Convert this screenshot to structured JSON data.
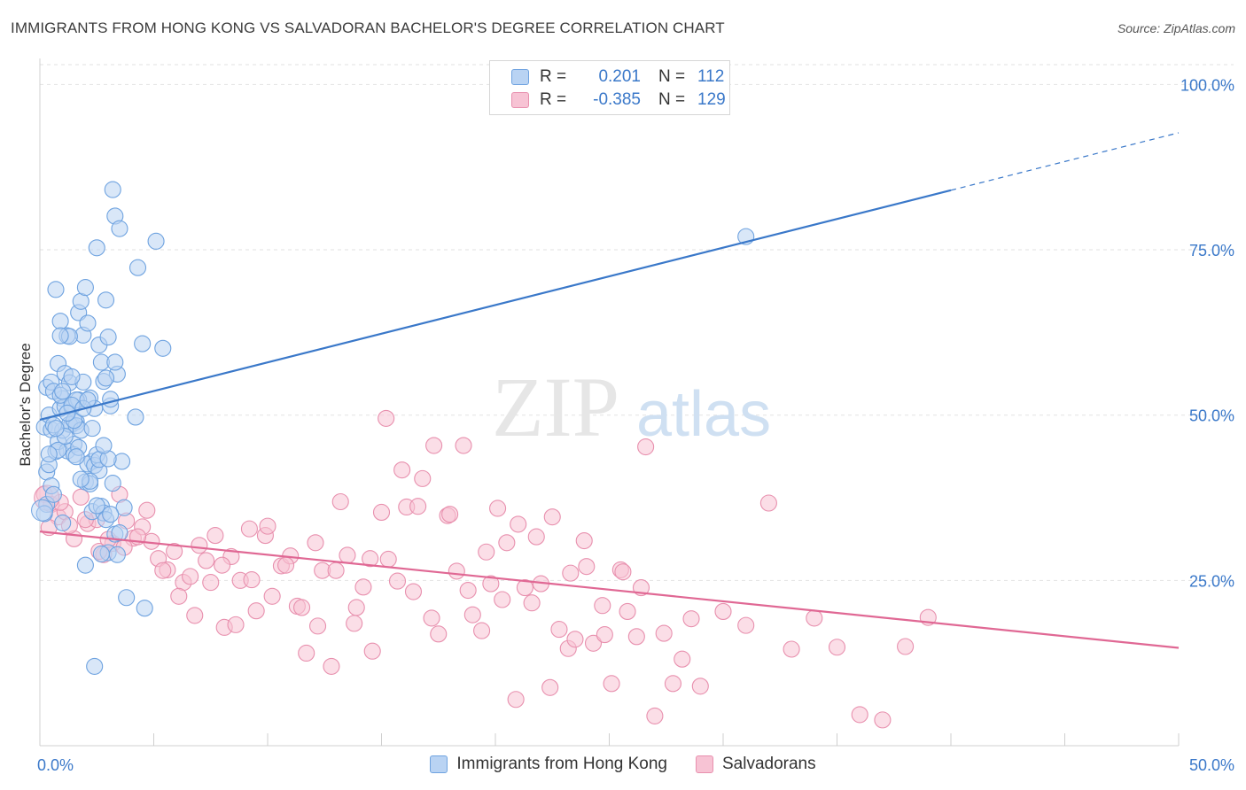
{
  "title": "IMMIGRANTS FROM HONG KONG VS SALVADORAN BACHELOR'S DEGREE CORRELATION CHART",
  "source": "Source: ZipAtlas.com",
  "watermark": {
    "zip": "ZIP",
    "atlas": "atlas"
  },
  "legend": {
    "rows": [
      {
        "r_label": "R =",
        "r_value": "0.201",
        "n_label": "N =",
        "n_value": "112",
        "color": "#6fa3e0",
        "fill": "#b9d3f3"
      },
      {
        "r_label": "R =",
        "r_value": "-0.385",
        "n_label": "N =",
        "n_value": "129",
        "color": "#e890ae",
        "fill": "#f7c3d4"
      }
    ]
  },
  "chart_data": {
    "type": "scatter",
    "title": "IMMIGRANTS FROM HONG KONG VS SALVADORAN BACHELOR'S DEGREE CORRELATION CHART",
    "xlabel": "",
    "ylabel": "Bachelor's Degree",
    "xlim": [
      0,
      50
    ],
    "ylim": [
      0,
      103
    ],
    "x_tick_labels": [
      "0.0%",
      "50.0%"
    ],
    "y_tick_labels": [
      "25.0%",
      "50.0%",
      "75.0%",
      "100.0%"
    ],
    "y_ticks": [
      25,
      50,
      75,
      100
    ],
    "grid": true,
    "legend_position": "top-center",
    "colors": {
      "hongkong": "#3a78c9",
      "salvadoran": "#e06894",
      "axis_text": "#3a78c9"
    },
    "series": [
      {
        "name": "Immigrants from Hong Kong",
        "color": "#6fa3e0",
        "trend": {
          "x0": 0,
          "y0": 49.3,
          "x1": 40,
          "y1": 84.0,
          "dash_to_x": 50,
          "dash_to_y": 92.7
        },
        "points": [
          [
            0.3,
            54.2
          ],
          [
            0.5,
            55.0
          ],
          [
            0.7,
            69.0
          ],
          [
            0.8,
            57.8
          ],
          [
            0.9,
            64.2
          ],
          [
            1.0,
            52.5
          ],
          [
            1.1,
            56.3
          ],
          [
            1.2,
            62.0
          ],
          [
            1.3,
            54.9
          ],
          [
            1.4,
            48.6
          ],
          [
            1.5,
            45.6
          ],
          [
            1.6,
            49.0
          ],
          [
            1.7,
            65.5
          ],
          [
            1.8,
            67.2
          ],
          [
            1.9,
            62.1
          ],
          [
            2.0,
            69.3
          ],
          [
            2.1,
            63.9
          ],
          [
            2.2,
            52.6
          ],
          [
            2.3,
            43.0
          ],
          [
            2.4,
            51.0
          ],
          [
            2.5,
            75.3
          ],
          [
            2.6,
            60.6
          ],
          [
            2.7,
            58.0
          ],
          [
            2.8,
            55.1
          ],
          [
            2.9,
            67.4
          ],
          [
            3.0,
            61.8
          ],
          [
            3.1,
            51.4
          ],
          [
            3.2,
            84.1
          ],
          [
            3.3,
            80.1
          ],
          [
            3.4,
            56.2
          ],
          [
            3.5,
            78.2
          ],
          [
            3.6,
            43.0
          ],
          [
            3.7,
            36.0
          ],
          [
            3.8,
            22.4
          ],
          [
            4.2,
            49.7
          ],
          [
            4.3,
            72.3
          ],
          [
            4.5,
            60.8
          ],
          [
            4.6,
            20.8
          ],
          [
            5.1,
            76.3
          ],
          [
            5.4,
            60.1
          ],
          [
            0.2,
            48.2
          ],
          [
            0.3,
            41.4
          ],
          [
            0.4,
            42.5
          ],
          [
            0.4,
            50.0
          ],
          [
            0.5,
            47.8
          ],
          [
            0.6,
            53.6
          ],
          [
            0.7,
            44.5
          ],
          [
            0.8,
            46.0
          ],
          [
            0.9,
            51.0
          ],
          [
            1.0,
            47.7
          ],
          [
            1.1,
            51.3
          ],
          [
            1.2,
            44.6
          ],
          [
            1.3,
            48.6
          ],
          [
            1.4,
            51.2
          ],
          [
            1.5,
            44.0
          ],
          [
            1.6,
            48.4
          ],
          [
            1.7,
            52.3
          ],
          [
            1.8,
            47.7
          ],
          [
            1.9,
            55.0
          ],
          [
            2.0,
            39.9
          ],
          [
            2.1,
            42.6
          ],
          [
            2.2,
            39.6
          ],
          [
            2.3,
            35.4
          ],
          [
            2.4,
            42.4
          ],
          [
            2.5,
            44.0
          ],
          [
            2.6,
            41.6
          ],
          [
            2.7,
            36.2
          ],
          [
            2.8,
            35.2
          ],
          [
            2.9,
            34.2
          ],
          [
            3.0,
            29.2
          ],
          [
            3.1,
            35.0
          ],
          [
            3.2,
            39.7
          ],
          [
            3.3,
            32.0
          ],
          [
            3.4,
            28.9
          ],
          [
            2.0,
            27.3
          ],
          [
            2.4,
            12.0
          ],
          [
            1.0,
            33.7
          ],
          [
            1.6,
            52.3
          ],
          [
            0.9,
            53.0
          ],
          [
            0.6,
            48.5
          ],
          [
            1.4,
            51.5
          ],
          [
            2.7,
            29.0
          ],
          [
            3.5,
            32.2
          ],
          [
            2.2,
            40.0
          ],
          [
            1.8,
            40.3
          ],
          [
            2.9,
            55.6
          ],
          [
            1.3,
            61.9
          ],
          [
            3.1,
            52.4
          ],
          [
            0.3,
            36.5
          ],
          [
            0.5,
            39.3
          ],
          [
            0.8,
            44.7
          ],
          [
            1.1,
            46.8
          ],
          [
            1.5,
            49.2
          ],
          [
            1.9,
            51.0
          ],
          [
            2.3,
            48.0
          ],
          [
            2.6,
            43.3
          ],
          [
            0.7,
            48.0
          ],
          [
            1.2,
            50.3
          ],
          [
            0.4,
            44.1
          ],
          [
            0.6,
            38.0
          ],
          [
            1.0,
            53.6
          ],
          [
            1.7,
            45.1
          ],
          [
            2.1,
            52.3
          ],
          [
            2.5,
            36.3
          ],
          [
            3.0,
            43.4
          ],
          [
            3.3,
            58.0
          ],
          [
            31.0,
            77.0
          ],
          [
            1.4,
            55.8
          ],
          [
            0.9,
            62.0
          ],
          [
            1.6,
            43.7
          ],
          [
            2.8,
            45.4
          ],
          [
            0.2,
            35.1
          ]
        ]
      },
      {
        "name": "Salvadorans",
        "color": "#e890ae",
        "trend": {
          "x0": 0,
          "y0": 32.4,
          "x1": 50,
          "y1": 14.8
        },
        "points": [
          [
            0.2,
            38.0
          ],
          [
            0.5,
            36.5
          ],
          [
            0.8,
            34.6
          ],
          [
            1.1,
            35.4
          ],
          [
            1.5,
            31.3
          ],
          [
            1.8,
            37.6
          ],
          [
            2.1,
            33.6
          ],
          [
            2.5,
            34.2
          ],
          [
            2.8,
            28.9
          ],
          [
            3.2,
            30.6
          ],
          [
            3.5,
            38.0
          ],
          [
            3.8,
            34.0
          ],
          [
            4.1,
            31.4
          ],
          [
            4.5,
            33.1
          ],
          [
            4.9,
            30.9
          ],
          [
            5.2,
            28.3
          ],
          [
            5.6,
            26.6
          ],
          [
            5.9,
            29.4
          ],
          [
            6.3,
            24.7
          ],
          [
            6.6,
            25.6
          ],
          [
            7.0,
            30.3
          ],
          [
            7.3,
            28.0
          ],
          [
            7.7,
            31.8
          ],
          [
            8.1,
            17.9
          ],
          [
            8.4,
            28.6
          ],
          [
            8.8,
            25.0
          ],
          [
            9.2,
            32.8
          ],
          [
            9.5,
            20.4
          ],
          [
            9.9,
            31.8
          ],
          [
            10.2,
            22.6
          ],
          [
            10.6,
            27.2
          ],
          [
            11.0,
            28.7
          ],
          [
            11.3,
            21.1
          ],
          [
            11.7,
            14.0
          ],
          [
            12.1,
            30.7
          ],
          [
            12.4,
            26.5
          ],
          [
            12.8,
            12.0
          ],
          [
            13.2,
            36.9
          ],
          [
            13.5,
            28.8
          ],
          [
            13.9,
            20.9
          ],
          [
            14.2,
            24.0
          ],
          [
            14.6,
            14.3
          ],
          [
            15.0,
            35.3
          ],
          [
            15.3,
            28.2
          ],
          [
            15.7,
            24.9
          ],
          [
            16.1,
            36.1
          ],
          [
            16.4,
            23.3
          ],
          [
            16.8,
            40.4
          ],
          [
            17.2,
            19.3
          ],
          [
            17.5,
            16.9
          ],
          [
            17.9,
            34.8
          ],
          [
            18.3,
            26.4
          ],
          [
            18.6,
            45.4
          ],
          [
            19.0,
            19.8
          ],
          [
            19.4,
            17.4
          ],
          [
            19.8,
            24.5
          ],
          [
            20.1,
            35.9
          ],
          [
            20.5,
            30.7
          ],
          [
            20.9,
            7.0
          ],
          [
            21.3,
            23.9
          ],
          [
            21.6,
            21.6
          ],
          [
            22.0,
            24.5
          ],
          [
            22.4,
            8.8
          ],
          [
            22.8,
            17.6
          ],
          [
            23.2,
            14.7
          ],
          [
            23.5,
            16.1
          ],
          [
            23.9,
            31.0
          ],
          [
            24.3,
            15.5
          ],
          [
            24.7,
            21.2
          ],
          [
            25.1,
            9.4
          ],
          [
            25.5,
            26.6
          ],
          [
            25.8,
            20.3
          ],
          [
            26.2,
            16.5
          ],
          [
            26.6,
            45.2
          ],
          [
            27.0,
            4.5
          ],
          [
            27.4,
            17.0
          ],
          [
            27.8,
            9.4
          ],
          [
            28.2,
            13.1
          ],
          [
            28.6,
            19.2
          ],
          [
            29.0,
            9.0
          ],
          [
            30.0,
            20.3
          ],
          [
            31.0,
            18.2
          ],
          [
            32.0,
            36.7
          ],
          [
            33.0,
            14.6
          ],
          [
            34.0,
            19.3
          ],
          [
            35.0,
            14.9
          ],
          [
            36.0,
            4.7
          ],
          [
            37.0,
            3.9
          ],
          [
            38.0,
            15.0
          ],
          [
            39.0,
            19.4
          ],
          [
            0.4,
            33.0
          ],
          [
            0.9,
            36.8
          ],
          [
            1.3,
            33.3
          ],
          [
            2.0,
            34.2
          ],
          [
            2.6,
            29.4
          ],
          [
            3.0,
            31.2
          ],
          [
            3.7,
            30.0
          ],
          [
            4.3,
            31.6
          ],
          [
            4.7,
            35.6
          ],
          [
            5.4,
            26.5
          ],
          [
            6.1,
            22.6
          ],
          [
            6.8,
            19.7
          ],
          [
            7.5,
            24.7
          ],
          [
            8.0,
            27.3
          ],
          [
            8.6,
            18.3
          ],
          [
            9.3,
            25.1
          ],
          [
            10.0,
            33.2
          ],
          [
            10.8,
            27.3
          ],
          [
            11.5,
            20.9
          ],
          [
            12.2,
            18.1
          ],
          [
            13.0,
            26.5
          ],
          [
            13.8,
            18.5
          ],
          [
            14.5,
            28.3
          ],
          [
            15.2,
            49.5
          ],
          [
            15.9,
            41.7
          ],
          [
            16.6,
            36.2
          ],
          [
            17.3,
            45.4
          ],
          [
            18.0,
            35.0
          ],
          [
            18.8,
            23.5
          ],
          [
            19.6,
            29.3
          ],
          [
            20.3,
            22.1
          ],
          [
            21.0,
            33.5
          ],
          [
            21.8,
            31.6
          ],
          [
            22.5,
            34.6
          ],
          [
            23.3,
            26.1
          ],
          [
            24.0,
            27.1
          ],
          [
            24.8,
            16.8
          ],
          [
            25.6,
            26.3
          ],
          [
            26.4,
            23.9
          ]
        ]
      }
    ]
  },
  "bottom_legend": [
    {
      "label": "Immigrants from Hong Kong",
      "color": "#6fa3e0",
      "fill": "#b9d3f3"
    },
    {
      "label": "Salvadorans",
      "color": "#e890ae",
      "fill": "#f7c3d4"
    }
  ]
}
